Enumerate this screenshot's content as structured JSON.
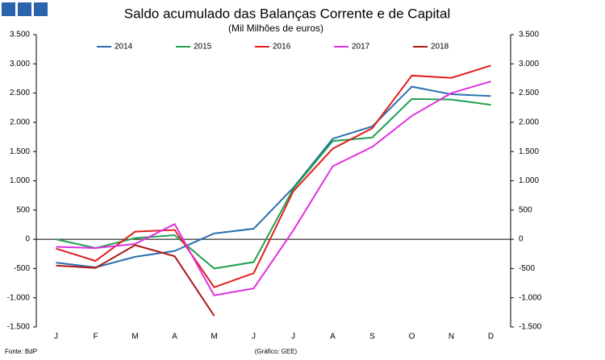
{
  "chart_data": {
    "type": "line",
    "title": "Saldo acumulado das Balanças Corrente e de Capital",
    "subtitle": "(Mil Milhões de euros)",
    "source": "Fonte: BdP",
    "credit": "(Gráfico: GEE)",
    "categories": [
      "J",
      "F",
      "M",
      "A",
      "M",
      "J",
      "J",
      "A",
      "S",
      "O",
      "N",
      "D"
    ],
    "series": [
      {
        "name": "2014",
        "color": "#2a6fb0",
        "values": [
          -400,
          -480,
          -300,
          -200,
          100,
          180,
          880,
          1720,
          1930,
          2610,
          2480,
          2450
        ]
      },
      {
        "name": "2015",
        "color": "#22a050",
        "values": [
          0,
          -150,
          20,
          70,
          -500,
          -390,
          860,
          1680,
          1740,
          2400,
          2390,
          2300
        ]
      },
      {
        "name": "2016",
        "color": "#e02020",
        "values": [
          -160,
          -370,
          130,
          160,
          -820,
          -580,
          820,
          1550,
          1900,
          2800,
          2760,
          2970
        ]
      },
      {
        "name": "2017",
        "color": "#e030e0",
        "values": [
          -130,
          -150,
          -80,
          260,
          -960,
          -840,
          150,
          1250,
          1580,
          2110,
          2500,
          2700
        ]
      },
      {
        "name": "2018",
        "color": "#b01818",
        "values": [
          -450,
          -490,
          -100,
          -290,
          -1310,
          null,
          null,
          null,
          null,
          null,
          null,
          null
        ]
      }
    ],
    "ylim": [
      -1500,
      3500
    ],
    "yticks": [
      {
        "value": -1500,
        "label": "-1.500"
      },
      {
        "value": -1000,
        "label": "-1.000"
      },
      {
        "value": -500,
        "label": "-500"
      },
      0,
      500,
      {
        "value": 1000,
        "label": "1.000"
      },
      {
        "value": 1500,
        "label": "1.500"
      },
      {
        "value": 2000,
        "label": "2.000"
      },
      {
        "value": 2500,
        "label": "2.500"
      },
      {
        "value": 3000,
        "label": "3.000"
      },
      {
        "value": 3500,
        "label": "3.500"
      }
    ],
    "y2lim": [
      -1500,
      3500
    ],
    "y2ticks": [
      {
        "value": -1500,
        "label": "-1.500"
      },
      {
        "value": -1000,
        "label": "-1.000"
      },
      {
        "value": -500,
        "label": "-500"
      },
      0,
      500,
      {
        "value": 1000,
        "label": "1.000"
      },
      {
        "value": 1500,
        "label": "1.500"
      },
      {
        "value": 2000,
        "label": "2.000"
      },
      {
        "value": 2500,
        "label": "2.500"
      },
      {
        "value": 3000,
        "label": "3.000"
      },
      {
        "value": 3500,
        "label": "3.500"
      }
    ]
  }
}
